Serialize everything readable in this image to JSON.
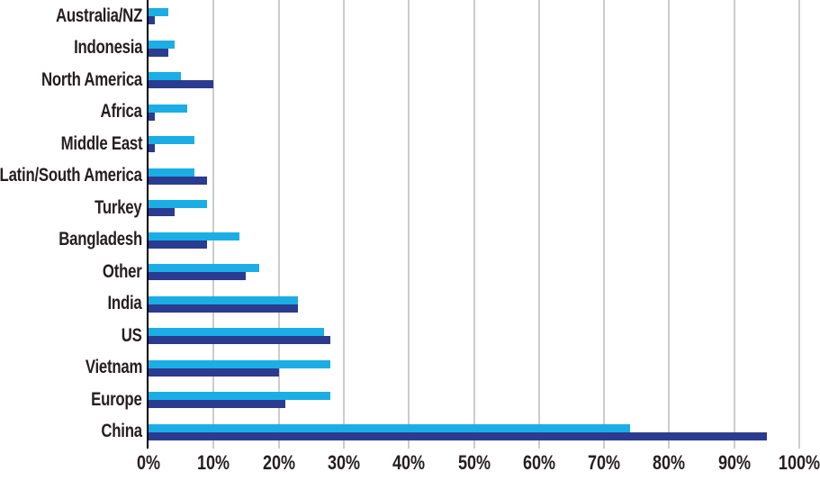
{
  "chart_data": {
    "type": "bar",
    "orientation": "horizontal",
    "title": "",
    "xlabel": "",
    "ylabel": "",
    "categories": [
      "Australia/NZ",
      "Indonesia",
      "North America",
      "Africa",
      "Middle East",
      "Latin/South America",
      "Turkey",
      "Bangladesh",
      "Other",
      "India",
      "US",
      "Vietnam",
      "Europe",
      "China"
    ],
    "series": [
      {
        "name": "light-blue-series",
        "color": "#1BAEE5",
        "values": [
          3,
          4,
          5,
          6,
          7,
          7,
          9,
          14,
          17,
          23,
          27,
          28,
          28,
          74
        ]
      },
      {
        "name": "dark-blue-series",
        "color": "#2A3B90",
        "values": [
          1,
          3,
          10,
          1,
          1,
          9,
          4,
          9,
          15,
          23,
          28,
          20,
          21,
          95
        ]
      }
    ],
    "xlim": [
      0,
      100
    ],
    "x_ticks": [
      0,
      10,
      20,
      30,
      40,
      50,
      60,
      70,
      80,
      90,
      100
    ],
    "x_tick_labels": [
      "0%",
      "10%",
      "20%",
      "30%",
      "40%",
      "50%",
      "60%",
      "70%",
      "80%",
      "90%",
      "100%"
    ],
    "grid": "vertical-gridlines",
    "legend": "none",
    "colors": {
      "axis": "#000000",
      "gridline": "#cccccc",
      "text": "#231F20",
      "background": "#ffffff"
    }
  }
}
